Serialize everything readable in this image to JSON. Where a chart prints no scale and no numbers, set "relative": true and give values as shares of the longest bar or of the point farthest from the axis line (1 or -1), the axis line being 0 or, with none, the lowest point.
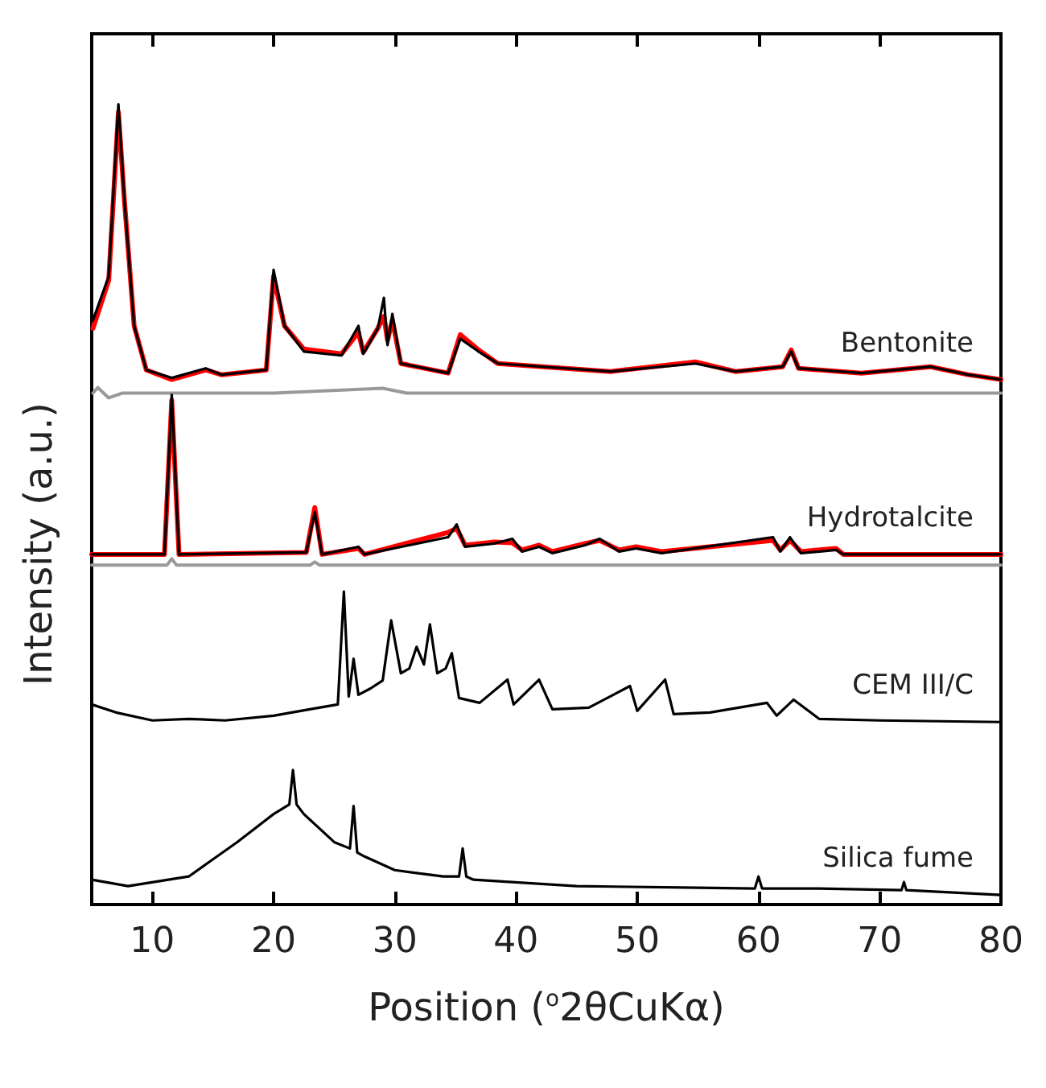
{
  "chart_data": {
    "type": "line",
    "relative": true,
    "xlabel": "Position ($^{o}$2θCuKα)",
    "ylabel": "Intensity (a.u.)",
    "xlim": [
      5,
      80
    ],
    "xticks": [
      10,
      20,
      30,
      40,
      50,
      60,
      70,
      80
    ],
    "grid": false,
    "legend": false,
    "marker": "none",
    "line_style": "solid",
    "series": [
      {
        "color": "#ff0000",
        "x": [
          5.1,
          6.4,
          7.2,
          7.7,
          8.5,
          9.5,
          11.6,
          14.4,
          15.7,
          19.4,
          20.0,
          20.9,
          22.5,
          25.6,
          27.0,
          27.4,
          28.6,
          29.1,
          29.4,
          29.8,
          30.5,
          34.4,
          35.4,
          36.9,
          38.5,
          47.8,
          54.8,
          58.1,
          62.0,
          62.7,
          63.3,
          68.5,
          74.2,
          77.3,
          80.0
        ],
        "values": [
          0.72,
          0.78,
          0.99,
          0.879,
          0.723,
          0.668,
          0.656,
          0.668,
          0.662,
          0.668,
          0.785,
          0.723,
          0.694,
          0.688,
          0.715,
          0.69,
          0.72,
          0.735,
          0.705,
          0.73,
          0.676,
          0.664,
          0.712,
          0.693,
          0.676,
          0.666,
          0.678,
          0.666,
          0.672,
          0.693,
          0.67,
          0.664,
          0.672,
          0.662,
          0.656
        ]
      },
      {
        "name": "Bentonite",
        "color": "#000000",
        "x": [
          5.1,
          6.4,
          7.2,
          7.7,
          8.5,
          9.5,
          11.6,
          14.4,
          15.7,
          19.4,
          20.0,
          20.9,
          22.5,
          25.6,
          27.0,
          27.4,
          28.6,
          29.1,
          29.4,
          29.8,
          30.5,
          34.4,
          35.4,
          36.9,
          38.5,
          47.8,
          54.8,
          58.1,
          62.0,
          62.7,
          63.3,
          68.5,
          74.2,
          77.3,
          80.0
        ],
        "values": [
          0.73,
          0.785,
          1.0,
          0.879,
          0.723,
          0.668,
          0.658,
          0.67,
          0.662,
          0.668,
          0.793,
          0.723,
          0.691,
          0.686,
          0.723,
          0.688,
          0.72,
          0.758,
          0.699,
          0.738,
          0.676,
          0.664,
          0.707,
          0.691,
          0.676,
          0.666,
          0.676,
          0.666,
          0.672,
          0.691,
          0.67,
          0.664,
          0.672,
          0.662,
          0.656
        ]
      },
      {
        "color": "#999999",
        "x": [
          5.1,
          5.5,
          6.4,
          7.5,
          10,
          20,
          29,
          31,
          40,
          60,
          80
        ],
        "values": [
          0.639,
          0.646,
          0.633,
          0.639,
          0.639,
          0.639,
          0.645,
          0.639,
          0.639,
          0.639,
          0.639
        ]
      },
      {
        "color": "#ff0000",
        "x": [
          5,
          11.0,
          11.6,
          12.2,
          22.7,
          23.4,
          24,
          27.0,
          27.5,
          34.4,
          35.1,
          35.8,
          38.2,
          39.7,
          40.5,
          41.9,
          43,
          45.7,
          46.9,
          48.5,
          49.9,
          52,
          61.2,
          61.8,
          62.6,
          63.5,
          66.4,
          67,
          80
        ],
        "values": [
          0.4375,
          0.4375,
          0.63,
          0.4375,
          0.44,
          0.496,
          0.4375,
          0.445,
          0.4375,
          0.465,
          0.47,
          0.449,
          0.453,
          0.452,
          0.443,
          0.449,
          0.441,
          0.451,
          0.455,
          0.443,
          0.447,
          0.441,
          0.455,
          0.443,
          0.455,
          0.441,
          0.445,
          0.4375,
          0.4375
        ]
      },
      {
        "name": "Hydrotalcite",
        "color": "#000000",
        "x": [
          5,
          11.0,
          11.6,
          12.2,
          22.7,
          23.4,
          24,
          27.0,
          27.5,
          34.4,
          35.1,
          35.8,
          38.2,
          39.7,
          40.5,
          41.9,
          43,
          45.7,
          46.9,
          48.5,
          49.9,
          52,
          61.2,
          61.8,
          62.6,
          63.5,
          66.4,
          67,
          80
        ],
        "values": [
          0.4375,
          0.4375,
          0.637,
          0.4375,
          0.44,
          0.49,
          0.4375,
          0.447,
          0.4375,
          0.459,
          0.475,
          0.447,
          0.451,
          0.457,
          0.441,
          0.447,
          0.439,
          0.449,
          0.457,
          0.441,
          0.445,
          0.439,
          0.459,
          0.441,
          0.459,
          0.439,
          0.443,
          0.4375,
          0.4375
        ]
      },
      {
        "color": "#999999",
        "x": [
          5,
          11.2,
          11.6,
          12.0,
          23.0,
          23.4,
          23.8,
          80
        ],
        "values": [
          0.424,
          0.424,
          0.432,
          0.424,
          0.424,
          0.428,
          0.424,
          0.424
        ]
      },
      {
        "name": "CEM III/C",
        "color": "#000000",
        "x": [
          5,
          7,
          10,
          13,
          16,
          20,
          23,
          25.3,
          25.8,
          26.2,
          26.6,
          27.0,
          28,
          29.0,
          29.7,
          30.5,
          31.2,
          31.8,
          32.4,
          32.9,
          33.5,
          34.2,
          34.7,
          35.3,
          37,
          39.3,
          39.8,
          41.9,
          43,
          46,
          49.4,
          50,
          52.3,
          53,
          56,
          60.7,
          61.5,
          62.9,
          65,
          70,
          75,
          80
        ],
        "values": [
          0.25,
          0.24,
          0.23,
          0.232,
          0.23,
          0.236,
          0.244,
          0.25,
          0.391,
          0.26,
          0.307,
          0.262,
          0.27,
          0.28,
          0.355,
          0.289,
          0.295,
          0.322,
          0.3,
          0.35,
          0.289,
          0.295,
          0.314,
          0.258,
          0.252,
          0.281,
          0.25,
          0.281,
          0.244,
          0.246,
          0.273,
          0.242,
          0.281,
          0.238,
          0.24,
          0.252,
          0.236,
          0.256,
          0.232,
          0.23,
          0.229,
          0.228
        ]
      },
      {
        "name": "Silica fume",
        "color": "#000000",
        "x": [
          5,
          8,
          13,
          17,
          20,
          21.3,
          21.6,
          21.9,
          22.5,
          25,
          26.3,
          26.6,
          26.9,
          27.5,
          30,
          34,
          35.3,
          35.6,
          35.9,
          36.5,
          45,
          55,
          59.7,
          60.0,
          60.3,
          65,
          71.8,
          72,
          72.2,
          80
        ],
        "values": [
          0.031,
          0.023,
          0.035,
          0.078,
          0.113,
          0.125,
          0.168,
          0.125,
          0.113,
          0.078,
          0.07,
          0.123,
          0.065,
          0.06,
          0.043,
          0.035,
          0.035,
          0.07,
          0.035,
          0.031,
          0.023,
          0.021,
          0.02,
          0.035,
          0.02,
          0.02,
          0.018,
          0.028,
          0.018,
          0.012
        ]
      }
    ]
  }
}
